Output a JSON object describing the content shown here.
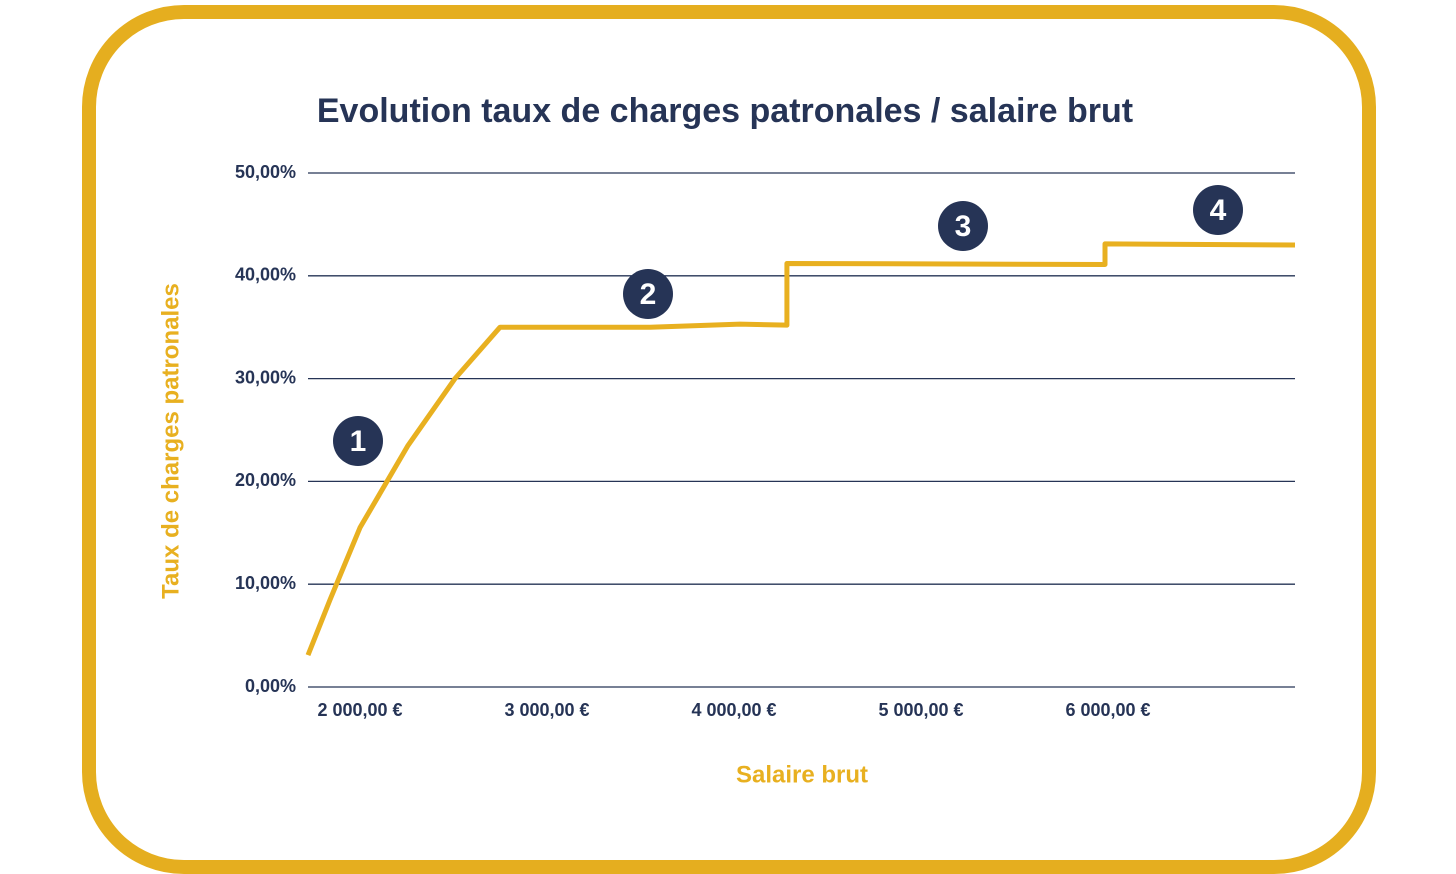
{
  "chart_data": {
    "type": "line",
    "title": "Evolution taux de charges patronales / salaire brut",
    "x_label": "Salaire brut",
    "y_label": "Taux de charges patronales",
    "x": [
      1722,
      1840,
      2000,
      2257,
      2508,
      2749,
      3551,
      4032,
      4283,
      4283,
      5984,
      5984,
      7000
    ],
    "values": [
      3.1,
      8.5,
      15.5,
      23.5,
      30.0,
      35.0,
      35.0,
      35.3,
      35.2,
      41.2,
      41.1,
      43.1,
      43.0
    ],
    "color": "#e8b020",
    "xlim": [
      1722,
      7000
    ],
    "xticks": [
      {
        "value": 2000,
        "label": "2 000,00 €"
      },
      {
        "value": 3000,
        "label": "3 000,00 €"
      },
      {
        "value": 4000,
        "label": "4 000,00 €"
      },
      {
        "value": 5000,
        "label": "5 000,00 €"
      },
      {
        "value": 6000,
        "label": "6 000,00 €"
      }
    ],
    "ylim": [
      0,
      50
    ],
    "yticks": [
      {
        "value": 0,
        "label": "0,00%"
      },
      {
        "value": 10,
        "label": "10,00%"
      },
      {
        "value": 20,
        "label": "20,00%"
      },
      {
        "value": 30,
        "label": "30,00%"
      },
      {
        "value": 40,
        "label": "40,00%"
      },
      {
        "value": 50,
        "label": "50,00%"
      }
    ],
    "grid": true,
    "annotations": [
      "1",
      "2",
      "3",
      "4"
    ]
  }
}
